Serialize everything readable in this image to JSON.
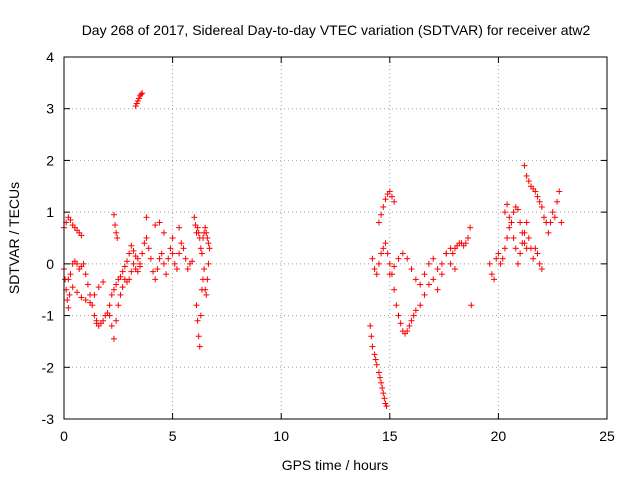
{
  "chart_data": {
    "type": "scatter",
    "title": "Day 268 of 2017, Sidereal Day-to-day VTEC variation (SDTVAR) for receiver atw2",
    "xlabel": "GPS time / hours",
    "ylabel": "SDTVAR / TECUs",
    "xlim": [
      0,
      25
    ],
    "ylim": [
      -3,
      4
    ],
    "xticks": [
      0,
      5,
      10,
      15,
      20,
      25
    ],
    "yticks": [
      -3,
      -2,
      -1,
      0,
      1,
      2,
      3,
      4
    ],
    "grid": true,
    "marker": "+",
    "color": "#ff0000",
    "series": [
      {
        "name": "SDTVAR",
        "segments": [
          {
            "x": [
              0.0,
              0.1,
              0.2,
              0.3,
              0.4,
              0.5,
              0.6,
              0.7,
              0.8
            ],
            "y": [
              0.7,
              0.8,
              0.9,
              0.85,
              0.75,
              0.7,
              0.65,
              0.6,
              0.55
            ]
          },
          {
            "x": [
              0.0,
              0.05,
              0.1,
              0.15,
              0.2,
              0.25,
              0.3,
              0.4,
              0.5,
              0.6,
              0.7,
              0.8,
              0.9,
              1.0,
              1.1,
              1.2,
              1.3,
              1.4,
              1.5
            ],
            "y": [
              -0.1,
              -0.3,
              -0.5,
              -0.7,
              -0.85,
              -0.6,
              -0.2,
              0.0,
              0.05,
              0.0,
              -0.1,
              -0.05,
              0.0,
              -0.2,
              -0.4,
              -0.6,
              -0.8,
              -1.0,
              -1.1
            ]
          },
          {
            "x": [
              0.2,
              0.4,
              0.6,
              0.8,
              1.0,
              1.2,
              1.4,
              1.6,
              1.8
            ],
            "y": [
              -0.3,
              -0.45,
              -0.55,
              -0.65,
              -0.7,
              -0.75,
              -0.6,
              -0.45,
              -0.35
            ]
          },
          {
            "x": [
              1.5,
              1.6,
              1.7,
              1.8,
              1.9,
              2.0,
              2.1,
              2.2,
              2.3,
              2.4,
              2.5,
              2.6,
              2.7,
              2.8,
              2.9,
              3.0,
              3.1,
              3.2,
              3.3,
              3.4,
              3.5
            ],
            "y": [
              -1.15,
              -1.2,
              -1.15,
              -1.1,
              -1.0,
              -0.95,
              -1.0,
              -1.2,
              -1.45,
              -1.1,
              -0.8,
              -0.6,
              -0.45,
              -0.3,
              -0.35,
              -0.3,
              -0.15,
              0.0,
              -0.1,
              -0.15,
              -0.05
            ]
          },
          {
            "x": [
              2.1,
              2.2,
              2.3,
              2.4,
              2.5,
              2.6,
              2.7,
              2.8,
              2.9,
              3.0,
              3.1,
              3.2,
              3.3,
              3.4,
              3.5
            ],
            "y": [
              -0.8,
              -0.6,
              -0.5,
              -0.4,
              -0.3,
              -0.25,
              -0.15,
              -0.05,
              0.05,
              0.2,
              0.35,
              0.25,
              0.15,
              0.1,
              0.0
            ]
          },
          {
            "x": [
              2.3,
              2.35,
              2.4,
              2.45
            ],
            "y": [
              0.95,
              0.75,
              0.6,
              0.5
            ]
          },
          {
            "x": [
              3.3,
              3.35,
              3.4,
              3.45,
              3.5,
              3.55,
              3.6
            ],
            "y": [
              3.05,
              3.1,
              3.15,
              3.2,
              3.25,
              3.28,
              3.3
            ]
          },
          {
            "x": [
              3.6,
              3.7,
              3.8,
              3.9,
              4.0,
              4.1,
              4.2,
              4.3,
              4.4,
              4.5,
              4.6,
              4.7,
              4.8,
              4.9,
              5.0,
              5.1,
              5.2,
              5.3,
              5.4,
              5.5,
              5.6,
              5.7,
              5.8,
              5.9
            ],
            "y": [
              0.2,
              0.4,
              0.5,
              0.3,
              0.1,
              -0.15,
              -0.3,
              -0.1,
              0.1,
              0.2,
              0.0,
              -0.2,
              0.1,
              0.3,
              0.2,
              0.0,
              -0.1,
              0.2,
              0.4,
              0.3,
              0.1,
              -0.1,
              0.0,
              0.05
            ]
          },
          {
            "x": [
              3.8,
              4.2,
              4.4,
              4.6,
              5.0,
              5.3
            ],
            "y": [
              0.9,
              0.75,
              0.8,
              0.6,
              0.5,
              0.7
            ]
          },
          {
            "x": [
              6.0,
              6.05,
              6.1,
              6.15,
              6.2,
              6.25,
              6.3,
              6.35,
              6.4,
              6.45,
              6.5,
              6.55,
              6.6,
              6.65,
              6.7
            ],
            "y": [
              0.9,
              0.75,
              0.6,
              0.7,
              0.6,
              0.5,
              0.3,
              0.2,
              0.5,
              0.6,
              0.7,
              0.6,
              0.5,
              0.4,
              0.3
            ]
          },
          {
            "x": [
              6.1,
              6.15,
              6.2,
              6.25,
              6.3,
              6.35,
              6.4,
              6.45,
              6.5,
              6.55,
              6.6,
              6.65
            ],
            "y": [
              -0.8,
              -1.1,
              -1.4,
              -1.6,
              -1.0,
              -0.5,
              -0.3,
              -0.1,
              -0.5,
              -0.6,
              -0.3,
              0.0
            ]
          },
          {
            "x": [
              14.1,
              14.15,
              14.2,
              14.3,
              14.35,
              14.4,
              14.5,
              14.55,
              14.6,
              14.65,
              14.7,
              14.75,
              14.8,
              14.85
            ],
            "y": [
              -1.2,
              -1.4,
              -1.6,
              -1.75,
              -1.85,
              -1.95,
              -2.1,
              -2.2,
              -2.3,
              -2.4,
              -2.5,
              -2.6,
              -2.7,
              -2.75
            ]
          },
          {
            "x": [
              14.2,
              14.3,
              14.4,
              14.5,
              14.6,
              14.7,
              14.8,
              14.9,
              15.0,
              15.1,
              15.2,
              15.3,
              15.4,
              15.5,
              15.6,
              15.7,
              15.8,
              15.9,
              16.0,
              16.1,
              16.2
            ],
            "y": [
              0.1,
              -0.1,
              -0.2,
              0.0,
              0.2,
              0.3,
              0.4,
              0.2,
              0.0,
              -0.2,
              -0.5,
              -0.8,
              -1.0,
              -1.15,
              -1.3,
              -1.35,
              -1.3,
              -1.2,
              -1.1,
              -1.0,
              -0.9
            ]
          },
          {
            "x": [
              14.5,
              14.6,
              14.7,
              14.8,
              14.9,
              15.0,
              15.1,
              15.2
            ],
            "y": [
              0.8,
              0.95,
              1.1,
              1.25,
              1.35,
              1.4,
              1.3,
              1.2
            ]
          },
          {
            "x": [
              15.0,
              15.2,
              15.4,
              15.6,
              15.8,
              16.0,
              16.2,
              16.4,
              16.6,
              16.8,
              17.0,
              17.2,
              17.4,
              17.6,
              17.8,
              18.0
            ],
            "y": [
              -0.2,
              -0.05,
              0.1,
              0.2,
              0.1,
              -0.1,
              -0.3,
              -0.4,
              -0.2,
              0.0,
              0.1,
              -0.1,
              0.0,
              0.2,
              0.0,
              -0.1
            ]
          },
          {
            "x": [
              16.4,
              16.6,
              16.8,
              17.0,
              17.2,
              17.4,
              17.6,
              17.8
            ],
            "y": [
              -0.8,
              -0.6,
              -0.4,
              -0.3,
              -0.5,
              -0.2,
              0.2,
              0.3
            ]
          },
          {
            "x": [
              17.9,
              18.0,
              18.1,
              18.2,
              18.3,
              18.4,
              18.5,
              18.6,
              18.7
            ],
            "y": [
              0.2,
              0.3,
              0.35,
              0.4,
              0.4,
              0.35,
              0.4,
              0.5,
              0.7
            ]
          },
          {
            "x": [
              18.75
            ],
            "y": [
              -0.8
            ]
          },
          {
            "x": [
              19.6,
              19.7,
              19.8,
              19.9,
              20.0,
              20.1,
              20.2,
              20.3,
              20.4,
              20.5,
              20.6,
              20.7,
              20.8,
              20.9,
              21.0,
              21.1,
              21.2,
              21.3,
              21.4,
              21.5,
              21.6,
              21.7,
              21.8,
              21.9,
              22.0
            ],
            "y": [
              0.0,
              -0.2,
              -0.3,
              0.1,
              0.2,
              0.0,
              0.1,
              0.3,
              0.5,
              0.7,
              0.8,
              0.5,
              0.3,
              0.0,
              0.2,
              0.4,
              0.6,
              0.8,
              0.5,
              0.3,
              0.1,
              0.3,
              0.2,
              0.0,
              -0.1
            ]
          },
          {
            "x": [
              20.3,
              20.4,
              20.5,
              20.6,
              20.7,
              20.8,
              20.9,
              21.0,
              21.1,
              21.2,
              21.3
            ],
            "y": [
              1.0,
              1.15,
              0.9,
              0.8,
              1.0,
              1.1,
              1.05,
              0.8,
              0.6,
              0.4,
              0.3
            ]
          },
          {
            "x": [
              21.2,
              21.3,
              21.4,
              21.5,
              21.6,
              21.7,
              21.8,
              21.9,
              22.0,
              22.1,
              22.2
            ],
            "y": [
              1.9,
              1.7,
              1.6,
              1.5,
              1.45,
              1.4,
              1.3,
              1.2,
              1.1,
              0.9,
              0.8
            ]
          },
          {
            "x": [
              22.3,
              22.4,
              22.5,
              22.6,
              22.7,
              22.8,
              22.9
            ],
            "y": [
              0.6,
              0.8,
              1.0,
              0.9,
              1.2,
              1.4,
              0.8
            ]
          }
        ]
      }
    ]
  }
}
